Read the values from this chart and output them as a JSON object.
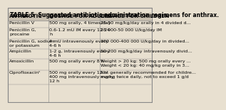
{
  "title": "TABLE 5  Suggested antibiotic administration regimens for anthrax.",
  "headers": [
    "ANTIBIOTIC",
    "DOSAGE FOR ADULTS",
    "DOSAGE FOR CHILDREN"
  ],
  "rows": [
    [
      "Penicillin V",
      "500 mg orally, 4 times/day",
      "25-50 mg/kg/day orally in 4 divided d..."
    ],
    [
      "Penicillin G,\nprocaine",
      "0.6-1.2 mU IM every 12-24\nh",
      "25 000-50 000 U/kg/day IM"
    ],
    [
      "Penicillin G, sodium\nor potassium",
      "4 mU intravenously every\n4-6 h",
      "300 000-400 000 U/kg/day in divided..."
    ],
    [
      "Ampicillin",
      "1-2 g, intravenously every\n4-6 h",
      "50-200 mg/kg/day intravenously divid..."
    ],
    [
      "Amoxicillin",
      "500 mg orally every 8 h",
      "Weight > 20 kg: 500 mg orally every ...\nWeight < 20 kg: 40 mg/kg orally in 3..."
    ],
    [
      "Ciprofloxacinᶜ",
      "500 mg orally every 12 h\n400 mg intravenously every\n12 h",
      "Not generally recommended for childre...\nmg/kg twice daily, not to exceed 1 g/d"
    ]
  ],
  "bg_color": "#e8e0d0",
  "header_bg": "#c8bfb0",
  "border_color": "#888888",
  "text_color": "#000000",
  "title_fontsize": 5.5,
  "header_fontsize": 5.2,
  "cell_fontsize": 4.6
}
